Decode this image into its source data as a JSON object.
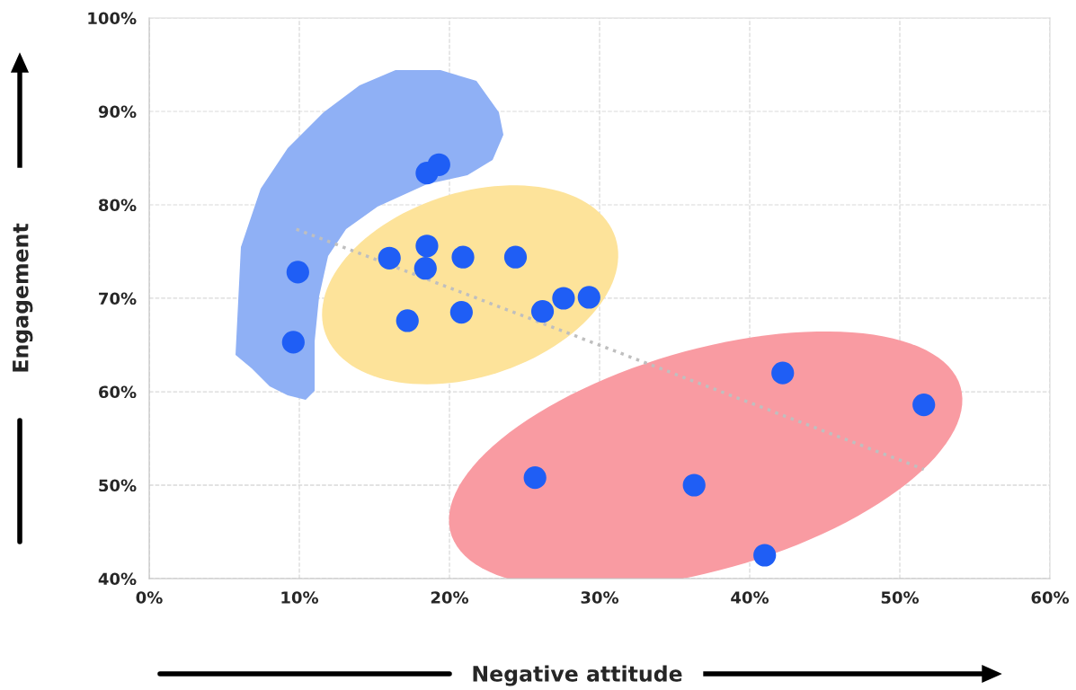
{
  "chart_data": {
    "type": "scatter",
    "xlabel": "Negative attitude",
    "ylabel": "Engagement",
    "xlim": [
      0,
      60
    ],
    "ylim": [
      40,
      100
    ],
    "xticks": [
      {
        "value": 0,
        "label": "0%"
      },
      {
        "value": 10,
        "label": "10%"
      },
      {
        "value": 20,
        "label": "20%"
      },
      {
        "value": 30,
        "label": "30%"
      },
      {
        "value": 40,
        "label": "40%"
      },
      {
        "value": 50,
        "label": "50%"
      },
      {
        "value": 60,
        "label": "60%"
      }
    ],
    "yticks": [
      {
        "value": 40,
        "label": "40%"
      },
      {
        "value": 50,
        "label": "50%"
      },
      {
        "value": 60,
        "label": "60%"
      },
      {
        "value": 70,
        "label": "70%"
      },
      {
        "value": 80,
        "label": "80%"
      },
      {
        "value": 90,
        "label": "90%"
      },
      {
        "value": 100,
        "label": "100%"
      }
    ],
    "grid": true,
    "series": [
      {
        "marker": "circle",
        "color": "#1f5ef5",
        "x": [
          9.9,
          9.6,
          18.5,
          19.3,
          16.0,
          18.5,
          18.4,
          17.2,
          20.9,
          20.8,
          24.4,
          26.2,
          27.6,
          29.3,
          25.7,
          36.3,
          41.0,
          42.2,
          51.6
        ],
        "values": [
          72.8,
          65.3,
          83.4,
          84.3,
          74.3,
          75.6,
          73.2,
          67.6,
          74.4,
          68.5,
          74.4,
          68.6,
          70.0,
          70.1,
          50.8,
          50.0,
          42.5,
          62.0,
          58.6
        ]
      },
      {
        "type": "line",
        "color": "#bfbfbf",
        "line_style": "dotted",
        "x": [
          9.8,
          51.6
        ],
        "values": [
          77.4,
          51.7
        ]
      }
    ]
  }
}
